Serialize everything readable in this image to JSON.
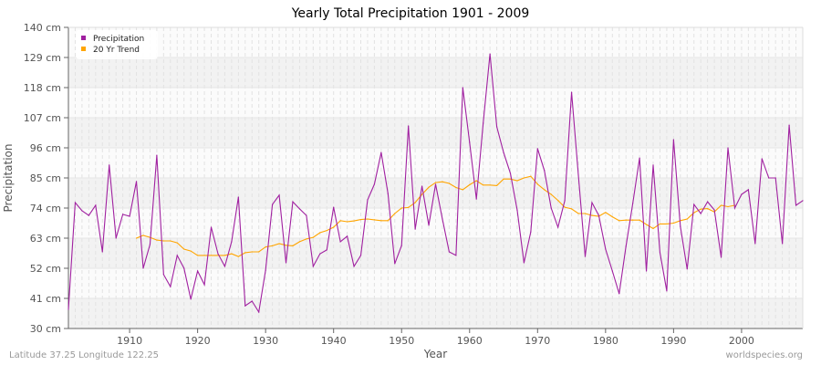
{
  "footer": {
    "location": "Latitude 37.25 Longitude 122.25",
    "site": "worldspecies.org"
  },
  "chart_data": {
    "type": "line",
    "title": "Yearly Total Precipitation 1901 - 2009",
    "xlabel": "Year",
    "ylabel": "Precipitation",
    "ylim": [
      30,
      140
    ],
    "xlim": [
      1901,
      2009
    ],
    "yticks": [
      "30 cm",
      "41 cm",
      "52 cm",
      "63 cm",
      "74 cm",
      "85 cm",
      "96 cm",
      "107 cm",
      "118 cm",
      "129 cm",
      "140 cm"
    ],
    "xticks": [
      "1910",
      "1920",
      "1930",
      "1940",
      "1950",
      "1960",
      "1970",
      "1980",
      "1990",
      "2000"
    ],
    "grid": true,
    "legend": "top-left",
    "colors": {
      "precipitation": "#a020a0",
      "trend": "#ffa500"
    },
    "series": [
      {
        "name": "Precipitation",
        "x_start": 1901,
        "values": [
          37,
          76,
          73,
          71.3,
          75,
          58,
          89.7,
          63,
          71.7,
          71,
          83.7,
          52,
          60.7,
          93.3,
          49.7,
          45.3,
          56.7,
          52,
          40.7,
          51,
          46,
          67,
          57.3,
          52.7,
          61.7,
          78,
          38.3,
          40,
          36,
          51.3,
          75.3,
          78.7,
          54,
          76.3,
          73.7,
          71.3,
          52.7,
          57.3,
          58.7,
          74.3,
          61.7,
          63.7,
          52.7,
          56.7,
          77,
          82.7,
          94.3,
          79.3,
          53.7,
          60.3,
          104,
          66.3,
          82,
          67.7,
          82.7,
          70,
          58,
          56.7,
          118,
          98,
          77.3,
          105,
          130.3,
          103.7,
          94.3,
          86.7,
          73.3,
          54,
          65.3,
          95.7,
          87.7,
          74,
          67,
          76.7,
          116.3,
          86,
          56.3,
          76,
          71.3,
          59,
          51,
          42.7,
          60,
          75.7,
          92.3,
          51,
          89.7,
          57.7,
          43.7,
          99,
          67.3,
          51.7,
          75.3,
          72,
          76.3,
          73.3,
          56,
          96,
          74,
          79,
          80.7,
          61,
          92,
          85,
          85,
          61,
          104.3,
          75,
          76.7
        ]
      },
      {
        "name": "20 Yr Trend",
        "x_start": 1911,
        "values": [
          63,
          64,
          63.3,
          62.3,
          62,
          62,
          61.3,
          59,
          58.3,
          56.7,
          56.7,
          56.7,
          56.7,
          56.7,
          57.3,
          56.3,
          57.7,
          58,
          58,
          59.8,
          60.2,
          61,
          60.4,
          60.2,
          61.7,
          62.7,
          63.3,
          65,
          65.8,
          67,
          69.4,
          69,
          69.3,
          69.8,
          70,
          69.7,
          69.4,
          69.4,
          72,
          74,
          74.2,
          76,
          79,
          81.6,
          83.3,
          83.6,
          83,
          81.5,
          80.7,
          82.5,
          84,
          82.4,
          82.4,
          82.2,
          84.6,
          84.6,
          84,
          85,
          85.6,
          82.7,
          80.7,
          79,
          76.8,
          74.3,
          73.7,
          72,
          72,
          71.3,
          71,
          72.4,
          70.8,
          69.4,
          69.6,
          69.6,
          69.6,
          68,
          66.5,
          68.2,
          68.2,
          68.5,
          69.4,
          70,
          72.3,
          73.6,
          73.8,
          72.6,
          75,
          74.5,
          75
        ]
      }
    ]
  }
}
